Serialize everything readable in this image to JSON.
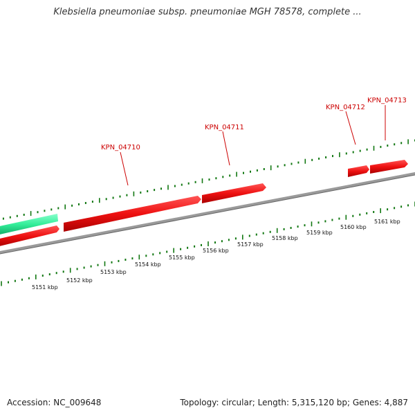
{
  "title": "Klebsiella pneumoniae subsp. pneumoniae MGH 78578, complete ...",
  "footer": {
    "accession": "Accession: NC_009648",
    "summary": "Topology: circular; Length: 5,315,120 bp; Genes: 4,887"
  },
  "colors": {
    "gene": "#ee1111",
    "highlight_gene": "#33ee99",
    "backbone": "#888888",
    "tick": "#117711",
    "label": "#cc0000"
  },
  "gene_labels": [
    {
      "id": "KPN_04710"
    },
    {
      "id": "KPN_04711"
    },
    {
      "id": "KPN_04712"
    },
    {
      "id": "KPN_04713"
    }
  ],
  "scale_labels": [
    "5151 kbp",
    "5152 kbp",
    "5153 kbp",
    "5154 kbp",
    "5155 kbp",
    "5156 kbp",
    "5157 kbp",
    "5158 kbp",
    "5159 kbp",
    "5160 kbp",
    "5161 kbp"
  ]
}
